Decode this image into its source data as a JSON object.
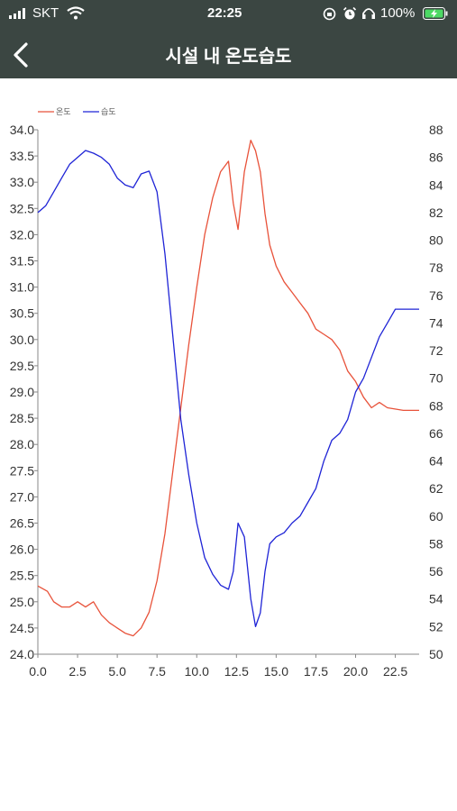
{
  "status": {
    "carrier": "SKT",
    "time": "22:25",
    "battery": "100%",
    "icons": [
      "signal-icon",
      "wifi-icon",
      "rotation-lock-icon",
      "alarm-icon",
      "headphones-icon",
      "battery-charging-icon"
    ]
  },
  "nav": {
    "title": "시설 내 온도습도",
    "back_icon": "chevron-left-icon"
  },
  "colors": {
    "bar": "#3b4642",
    "temperature": "#e8523a",
    "humidity": "#1f24d6"
  },
  "chart_data": {
    "type": "line",
    "legend": [
      "온도",
      "습도"
    ],
    "legend_position": "top-left",
    "x_ticks": [
      "0.0",
      "2.5",
      "5.0",
      "7.5",
      "10.0",
      "12.5",
      "15.0",
      "17.5",
      "20.0",
      "22.5"
    ],
    "xlim": [
      0,
      24
    ],
    "y_left_ticks": [
      "24.0",
      "24.5",
      "25.0",
      "25.5",
      "26.0",
      "26.5",
      "27.0",
      "27.5",
      "28.0",
      "28.5",
      "29.0",
      "29.5",
      "30.0",
      "30.5",
      "31.0",
      "31.5",
      "32.0",
      "32.5",
      "33.0",
      "33.5",
      "34.0"
    ],
    "ylim_left": [
      24,
      34
    ],
    "y_right_ticks": [
      "50",
      "52",
      "54",
      "56",
      "58",
      "60",
      "62",
      "64",
      "66",
      "68",
      "70",
      "72",
      "74",
      "76",
      "78",
      "80",
      "82",
      "84",
      "86",
      "88"
    ],
    "ylim_right": [
      50,
      88
    ],
    "series": [
      {
        "name": "온도",
        "axis": "left",
        "x": [
          0,
          0.6,
          1.0,
          1.5,
          2.0,
          2.5,
          3.0,
          3.5,
          4.0,
          4.5,
          5.0,
          5.5,
          6.0,
          6.5,
          7.0,
          7.5,
          8.0,
          8.5,
          9.0,
          9.5,
          10.0,
          10.5,
          11.0,
          11.5,
          12.0,
          12.3,
          12.6,
          13.0,
          13.4,
          13.7,
          14.0,
          14.3,
          14.6,
          15.0,
          15.5,
          16.0,
          16.5,
          17.0,
          17.5,
          18.0,
          18.5,
          19.0,
          19.5,
          20.0,
          20.5,
          21.0,
          21.5,
          22.0,
          23.0,
          24.0
        ],
        "values": [
          25.3,
          25.2,
          25.0,
          24.9,
          24.9,
          25.0,
          24.9,
          25.0,
          24.75,
          24.6,
          24.5,
          24.4,
          24.35,
          24.5,
          24.8,
          25.4,
          26.3,
          27.5,
          28.7,
          29.9,
          31.0,
          32.0,
          32.7,
          33.2,
          33.4,
          32.6,
          32.1,
          33.2,
          33.8,
          33.6,
          33.2,
          32.4,
          31.8,
          31.4,
          31.1,
          30.9,
          30.7,
          30.5,
          30.2,
          30.1,
          30.0,
          29.8,
          29.4,
          29.2,
          28.9,
          28.7,
          28.8,
          28.7,
          28.65,
          28.65
        ]
      },
      {
        "name": "습도",
        "axis": "right",
        "x": [
          0,
          0.5,
          1.0,
          1.5,
          2.0,
          2.5,
          3.0,
          3.5,
          4.0,
          4.5,
          5.0,
          5.5,
          6.0,
          6.5,
          7.0,
          7.5,
          8.0,
          8.5,
          9.0,
          9.5,
          10.0,
          10.5,
          11.0,
          11.5,
          12.0,
          12.3,
          12.6,
          13.0,
          13.4,
          13.7,
          14.0,
          14.3,
          14.6,
          15.0,
          15.5,
          16.0,
          16.5,
          17.0,
          17.5,
          18.0,
          18.5,
          19.0,
          19.5,
          20.0,
          20.5,
          21.0,
          21.5,
          22.0,
          22.5,
          23.0,
          24.0
        ],
        "values": [
          82.0,
          82.5,
          83.5,
          84.5,
          85.5,
          86.0,
          86.5,
          86.3,
          86.0,
          85.5,
          84.5,
          84.0,
          83.8,
          84.8,
          85.0,
          83.5,
          79.0,
          73.0,
          67.0,
          63.0,
          59.5,
          57.0,
          55.8,
          55.0,
          54.7,
          56.0,
          59.5,
          58.5,
          54.0,
          52.0,
          53.0,
          56.0,
          58.0,
          58.5,
          58.8,
          59.5,
          60.0,
          61.0,
          62.0,
          64.0,
          65.5,
          66.0,
          67.0,
          69.0,
          70.0,
          71.5,
          73.0,
          74.0,
          75.0,
          75.0,
          75.0
        ]
      }
    ]
  }
}
